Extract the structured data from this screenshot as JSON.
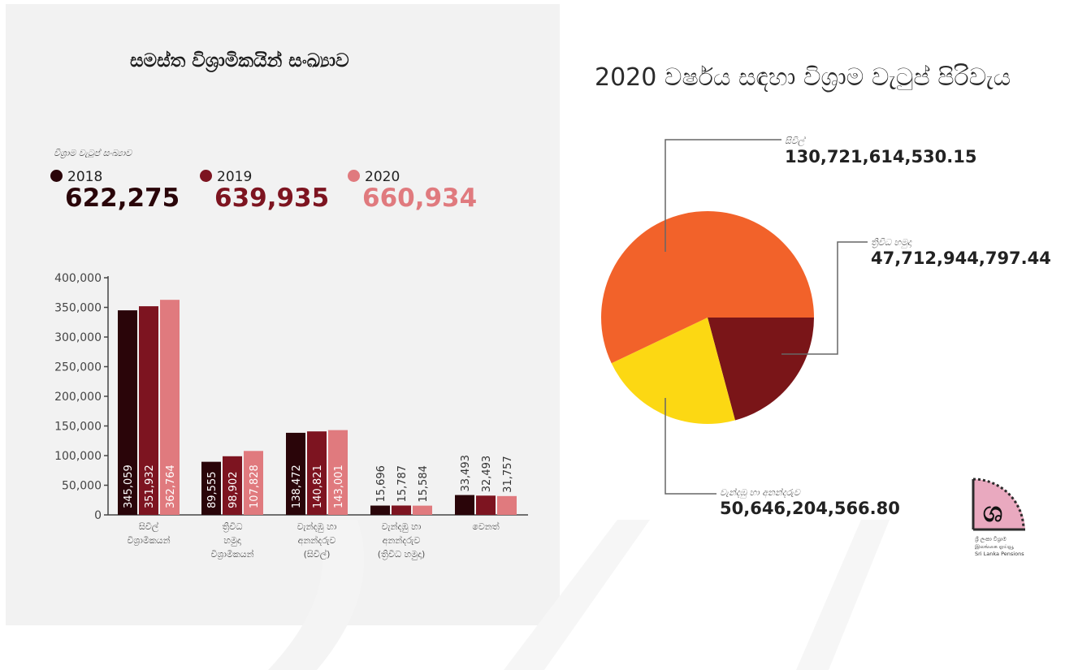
{
  "left_title": "සමස්ත විශ්‍රාමිකයින් සංඛ්‍යාව",
  "right_title": "2020 වර්ෂය සඳහා විශ්‍රාම වැටුප් පිරිවැය",
  "totals_caption": "විශ්‍රාම වැටුප් සංඛ්‍යාව",
  "totals": [
    {
      "year": "2018",
      "value": "622,275",
      "color": "#2a0509"
    },
    {
      "year": "2019",
      "value": "639,935",
      "color": "#7d1420"
    },
    {
      "year": "2020",
      "value": "660,934",
      "color": "#e07a7e"
    }
  ],
  "logo_caption": [
    "ශ්‍රී ලංකා විශ්‍රාම",
    "இலங்கை ஓய்வூ",
    "Sri Lanka Pensions"
  ],
  "chart_data": [
    {
      "type": "bar",
      "categories": [
        [
          "සිවිල්",
          "විශ්‍රාමිකයන්"
        ],
        [
          "ත්‍රිවිධ",
          "හමුදා",
          "විශ්‍රාමිකයන්"
        ],
        [
          "වැන්දඹු හා",
          "අනන්දරුව",
          "(සිවිල්)"
        ],
        [
          "වැන්දඹු හා",
          "අනන්දරුව",
          "(ත්‍රිවිධ හමුදා)"
        ],
        [
          "වෙනත්"
        ]
      ],
      "series": [
        {
          "name": "2018",
          "color": "#2a0509",
          "values": [
            345059,
            89555,
            138472,
            15696,
            33493
          ],
          "labels": [
            "345,059",
            "89,555",
            "138,472",
            "15,696",
            "33,493"
          ]
        },
        {
          "name": "2019",
          "color": "#7d1420",
          "values": [
            351932,
            98902,
            140821,
            15787,
            32493
          ],
          "labels": [
            "351,932",
            "98,902",
            "140,821",
            "15,787",
            "32,493"
          ]
        },
        {
          "name": "2020",
          "color": "#e07a7e",
          "values": [
            362764,
            107828,
            143001,
            15584,
            31757
          ],
          "labels": [
            "362,764",
            "107,828",
            "143,001",
            "15,584",
            "31,757"
          ]
        }
      ],
      "yticks": [
        "0",
        "50,000",
        "100,000",
        "150,000",
        "200,000",
        "250,000",
        "300,000",
        "350,000",
        "400,000"
      ],
      "ylim": [
        0,
        400000
      ]
    },
    {
      "type": "pie",
      "slices": [
        {
          "label": "සිවිල්",
          "value": 130721614530.15,
          "value_text": "130,721,614,530.15",
          "color": "#f2622a"
        },
        {
          "label": "ත්‍රිවිධ හමුදා",
          "value": 47712944797.44,
          "value_text": "47,712,944,797.44",
          "color": "#7a1518"
        },
        {
          "label": "වැන්දඹු හා අනන්දරුව",
          "value": 50646204566.8,
          "value_text": "50,646,204,566.80",
          "color": "#fcd813"
        }
      ]
    }
  ]
}
